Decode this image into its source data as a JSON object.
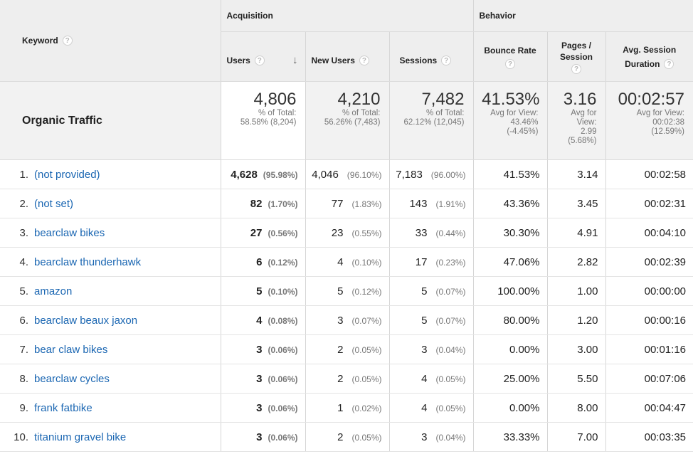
{
  "headers": {
    "keyword": "Keyword",
    "acquisition": "Acquisition",
    "behavior": "Behavior",
    "users": "Users",
    "new_users": "New Users",
    "sessions": "Sessions",
    "bounce_rate": "Bounce Rate",
    "pages_session_l1": "Pages /",
    "pages_session_l2": "Session",
    "avg_duration_l1": "Avg. Session",
    "avg_duration_l2": "Duration",
    "help_glyph": "?",
    "sort_glyph": "↓"
  },
  "totals": {
    "label": "Organic Traffic",
    "users": "4,806",
    "users_sub1": "% of Total:",
    "users_sub2": "58.58% (8,204)",
    "new_users": "4,210",
    "new_users_sub1": "% of Total:",
    "new_users_sub2": "56.26% (7,483)",
    "sessions": "7,482",
    "sessions_sub1": "% of Total:",
    "sessions_sub2": "62.12% (12,045)",
    "bounce": "41.53%",
    "bounce_sub1": "Avg for View:",
    "bounce_sub2": "43.46%",
    "bounce_sub3": "(-4.45%)",
    "pages": "3.16",
    "pages_sub1": "Avg for",
    "pages_sub2": "View:",
    "pages_sub3": "2.99",
    "pages_sub4": "(5.68%)",
    "duration": "00:02:57",
    "duration_sub1": "Avg for View:",
    "duration_sub2": "00:02:38",
    "duration_sub3": "(12.59%)"
  },
  "rows": [
    {
      "idx": "1.",
      "keyword": "(not provided)",
      "users": "4,628",
      "users_pct": "(95.98%)",
      "new_users": "4,046",
      "new_users_pct": "(96.10%)",
      "sessions": "7,183",
      "sessions_pct": "(96.00%)",
      "bounce": "41.53%",
      "pages": "3.14",
      "duration": "00:02:58"
    },
    {
      "idx": "2.",
      "keyword": "(not set)",
      "users": "82",
      "users_pct": "(1.70%)",
      "new_users": "77",
      "new_users_pct": "(1.83%)",
      "sessions": "143",
      "sessions_pct": "(1.91%)",
      "bounce": "43.36%",
      "pages": "3.45",
      "duration": "00:02:31"
    },
    {
      "idx": "3.",
      "keyword": "bearclaw bikes",
      "users": "27",
      "users_pct": "(0.56%)",
      "new_users": "23",
      "new_users_pct": "(0.55%)",
      "sessions": "33",
      "sessions_pct": "(0.44%)",
      "bounce": "30.30%",
      "pages": "4.91",
      "duration": "00:04:10"
    },
    {
      "idx": "4.",
      "keyword": "bearclaw thunderhawk",
      "users": "6",
      "users_pct": "(0.12%)",
      "new_users": "4",
      "new_users_pct": "(0.10%)",
      "sessions": "17",
      "sessions_pct": "(0.23%)",
      "bounce": "47.06%",
      "pages": "2.82",
      "duration": "00:02:39"
    },
    {
      "idx": "5.",
      "keyword": "amazon",
      "users": "5",
      "users_pct": "(0.10%)",
      "new_users": "5",
      "new_users_pct": "(0.12%)",
      "sessions": "5",
      "sessions_pct": "(0.07%)",
      "bounce": "100.00%",
      "pages": "1.00",
      "duration": "00:00:00"
    },
    {
      "idx": "6.",
      "keyword": "bearclaw beaux jaxon",
      "users": "4",
      "users_pct": "(0.08%)",
      "new_users": "3",
      "new_users_pct": "(0.07%)",
      "sessions": "5",
      "sessions_pct": "(0.07%)",
      "bounce": "80.00%",
      "pages": "1.20",
      "duration": "00:00:16"
    },
    {
      "idx": "7.",
      "keyword": "bear claw bikes",
      "users": "3",
      "users_pct": "(0.06%)",
      "new_users": "2",
      "new_users_pct": "(0.05%)",
      "sessions": "3",
      "sessions_pct": "(0.04%)",
      "bounce": "0.00%",
      "pages": "3.00",
      "duration": "00:01:16"
    },
    {
      "idx": "8.",
      "keyword": "bearclaw cycles",
      "users": "3",
      "users_pct": "(0.06%)",
      "new_users": "2",
      "new_users_pct": "(0.05%)",
      "sessions": "4",
      "sessions_pct": "(0.05%)",
      "bounce": "25.00%",
      "pages": "5.50",
      "duration": "00:07:06"
    },
    {
      "idx": "9.",
      "keyword": "frank fatbike",
      "users": "3",
      "users_pct": "(0.06%)",
      "new_users": "1",
      "new_users_pct": "(0.02%)",
      "sessions": "4",
      "sessions_pct": "(0.05%)",
      "bounce": "0.00%",
      "pages": "8.00",
      "duration": "00:04:47"
    },
    {
      "idx": "10.",
      "keyword": "titanium gravel bike",
      "users": "3",
      "users_pct": "(0.06%)",
      "new_users": "2",
      "new_users_pct": "(0.05%)",
      "sessions": "3",
      "sessions_pct": "(0.04%)",
      "bounce": "33.33%",
      "pages": "7.00",
      "duration": "00:03:35"
    }
  ]
}
